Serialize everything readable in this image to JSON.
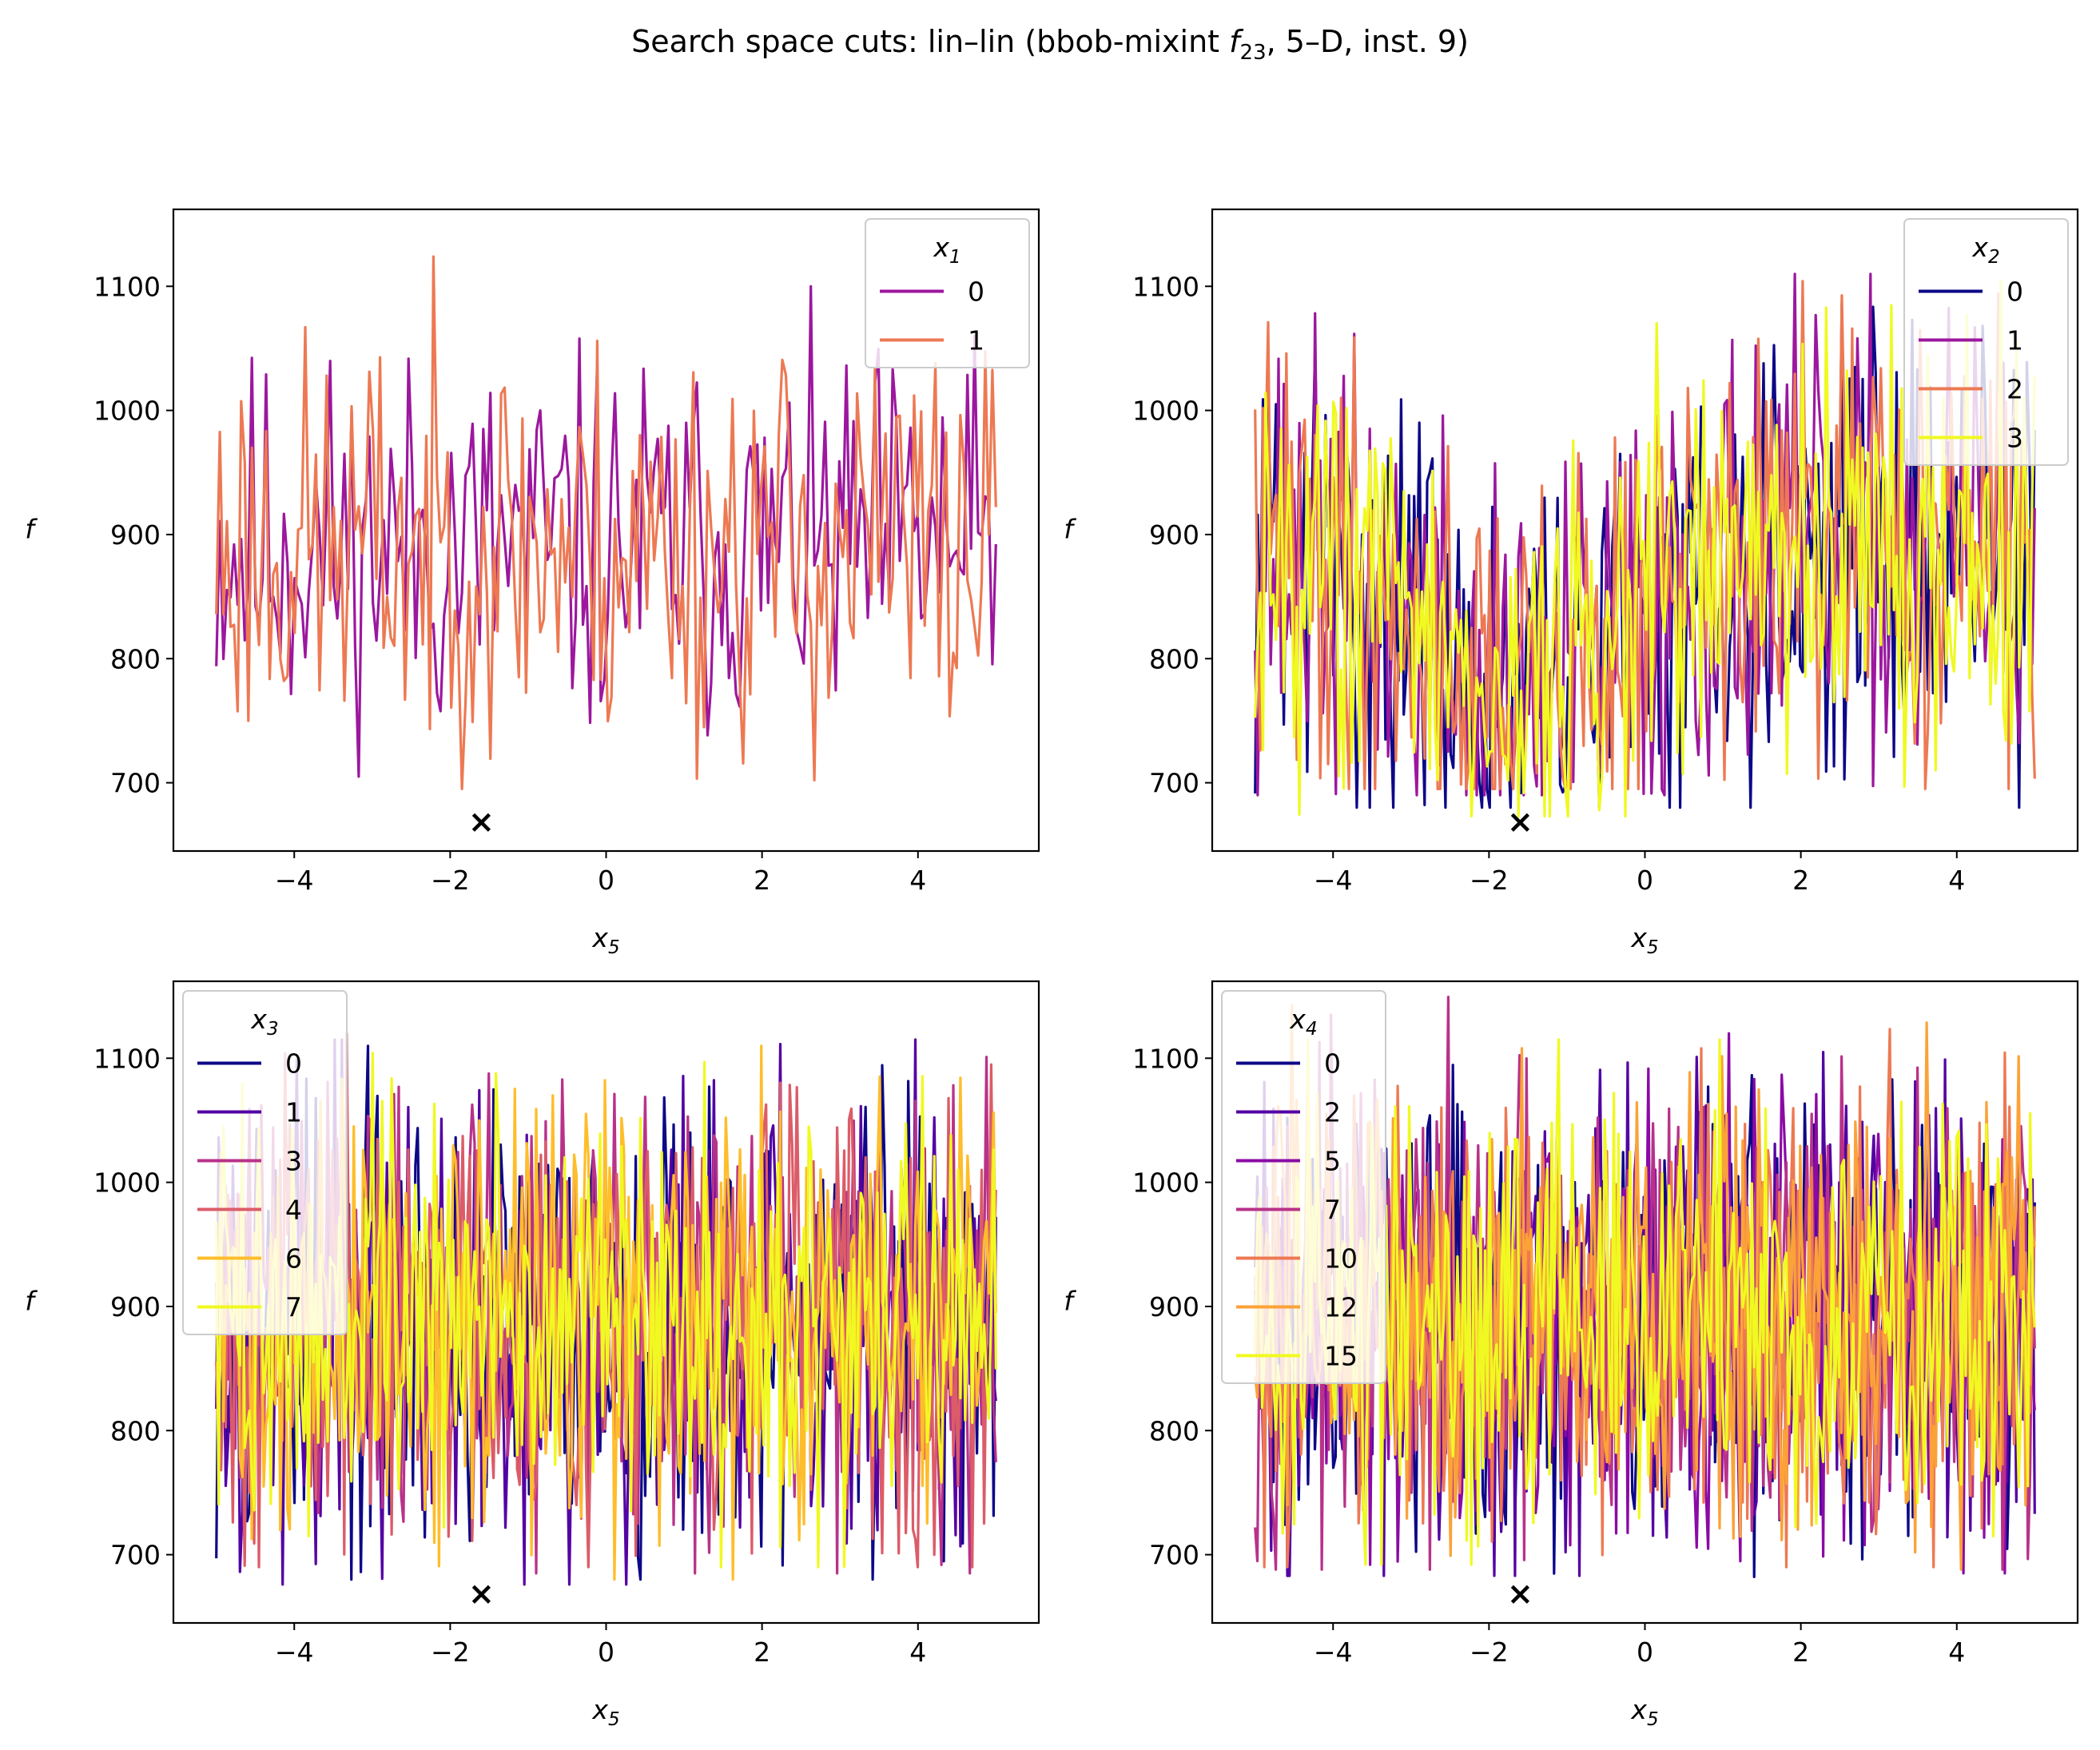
{
  "figure": {
    "title_prefix": "Search space cuts: lin–lin (bbob-mixint ",
    "title_func": "f",
    "title_func_sub": "23",
    "title_suffix": ", 5–D, inst. 9)"
  },
  "chart_data": [
    {
      "type": "line",
      "xlabel": "x",
      "xlabel_sub": "5",
      "ylabel": "f",
      "xlim": [
        -5.55,
        5.55
      ],
      "ylim": [
        645,
        1162
      ],
      "xticks": [
        -4,
        -2,
        0,
        2,
        4
      ],
      "yticks": [
        700,
        800,
        900,
        1000,
        1100
      ],
      "x_range": [
        -5,
        5
      ],
      "legend": {
        "title": "x",
        "title_sub": "1",
        "placement": "top-right"
      },
      "series": [
        {
          "name": "0",
          "color": "#9c179e",
          "amplitude": 95,
          "points": 220,
          "seed": 11,
          "min": 705,
          "max": 1100
        },
        {
          "name": "1",
          "color": "#ed7953",
          "amplitude": 105,
          "points": 220,
          "seed": 23,
          "min": 695,
          "max": 1136
        }
      ],
      "optimum": {
        "x": -1.6,
        "f": 668
      }
    },
    {
      "type": "line",
      "xlabel": "x",
      "xlabel_sub": "5",
      "ylabel": "f",
      "xlim": [
        -5.55,
        5.55
      ],
      "ylim": [
        645,
        1162
      ],
      "xticks": [
        -4,
        -2,
        0,
        2,
        4
      ],
      "yticks": [
        700,
        800,
        900,
        1000,
        1100
      ],
      "x_range": [
        -5,
        5
      ],
      "legend": {
        "title": "x",
        "title_sub": "2",
        "placement": "top-right"
      },
      "valley": {
        "center": -1.6,
        "width": 1.7,
        "depth": 120
      },
      "series": [
        {
          "name": "0",
          "color": "#0d0887",
          "amplitude": 110,
          "points": 300,
          "seed": 31,
          "min": 680,
          "max": 1118
        },
        {
          "name": "1",
          "color": "#9c179e",
          "amplitude": 110,
          "points": 300,
          "seed": 37,
          "min": 690,
          "max": 1110
        },
        {
          "name": "2",
          "color": "#ed7953",
          "amplitude": 110,
          "points": 300,
          "seed": 41,
          "min": 695,
          "max": 1140
        },
        {
          "name": "3",
          "color": "#f0f921",
          "amplitude": 105,
          "points": 300,
          "seed": 43,
          "min": 673,
          "max": 1108
        }
      ],
      "optimum": {
        "x": -1.6,
        "f": 668
      }
    },
    {
      "type": "line",
      "xlabel": "x",
      "xlabel_sub": "5",
      "ylabel": "f",
      "xlim": [
        -5.55,
        5.55
      ],
      "ylim": [
        645,
        1162
      ],
      "xticks": [
        -4,
        -2,
        0,
        2,
        4
      ],
      "yticks": [
        700,
        800,
        900,
        1000,
        1100
      ],
      "x_range": [
        -5,
        5
      ],
      "legend": {
        "title": "x",
        "title_sub": "3",
        "placement": "top-left"
      },
      "series": [
        {
          "name": "0",
          "color": "#0d0887",
          "amplitude": 115,
          "points": 330,
          "seed": 53,
          "min": 680,
          "max": 1110
        },
        {
          "name": "1",
          "color": "#5302a3",
          "amplitude": 115,
          "points": 330,
          "seed": 59,
          "min": 676,
          "max": 1115
        },
        {
          "name": "3",
          "color": "#b83289",
          "amplitude": 115,
          "points": 330,
          "seed": 61,
          "min": 685,
          "max": 1125
        },
        {
          "name": "4",
          "color": "#db5c68",
          "amplitude": 115,
          "points": 330,
          "seed": 67,
          "min": 690,
          "max": 1120
        },
        {
          "name": "6",
          "color": "#febd2a",
          "amplitude": 110,
          "points": 330,
          "seed": 71,
          "min": 680,
          "max": 1110
        },
        {
          "name": "7",
          "color": "#f0f921",
          "amplitude": 105,
          "points": 330,
          "seed": 73,
          "min": 690,
          "max": 1122
        }
      ],
      "optimum": {
        "x": -1.6,
        "f": 668
      }
    },
    {
      "type": "line",
      "xlabel": "x",
      "xlabel_sub": "5",
      "ylabel": "f",
      "xlim": [
        -5.55,
        5.55
      ],
      "ylim": [
        645,
        1162
      ],
      "xticks": [
        -4,
        -2,
        0,
        2,
        4
      ],
      "yticks": [
        700,
        800,
        900,
        1000,
        1100
      ],
      "x_range": [
        -5,
        5
      ],
      "legend": {
        "title": "x",
        "title_sub": "4",
        "placement": "top-left"
      },
      "series": [
        {
          "name": "0",
          "color": "#0d0887",
          "amplitude": 115,
          "points": 340,
          "seed": 79,
          "min": 680,
          "max": 1130
        },
        {
          "name": "2",
          "color": "#5302a3",
          "amplitude": 115,
          "points": 340,
          "seed": 83,
          "min": 683,
          "max": 1125
        },
        {
          "name": "5",
          "color": "#8b0aa5",
          "amplitude": 115,
          "points": 340,
          "seed": 89,
          "min": 685,
          "max": 1120
        },
        {
          "name": "7",
          "color": "#b83289",
          "amplitude": 115,
          "points": 340,
          "seed": 97,
          "min": 688,
          "max": 1150
        },
        {
          "name": "10",
          "color": "#ed7953",
          "amplitude": 112,
          "points": 340,
          "seed": 101,
          "min": 690,
          "max": 1140
        },
        {
          "name": "12",
          "color": "#fba238",
          "amplitude": 112,
          "points": 340,
          "seed": 103,
          "min": 688,
          "max": 1143
        },
        {
          "name": "15",
          "color": "#f0f921",
          "amplitude": 108,
          "points": 340,
          "seed": 107,
          "min": 692,
          "max": 1115
        }
      ],
      "optimum": {
        "x": -1.6,
        "f": 668
      }
    }
  ]
}
